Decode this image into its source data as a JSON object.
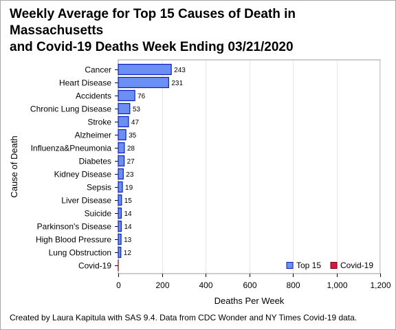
{
  "title_lines": [
    "Weekly Average for Top 15 Causes of Death in",
    "Massachusetts",
    "and Covid-19 Deaths Week Ending 03/21/2020"
  ],
  "footnote": "Created by Laura Kapitula with SAS 9.4. Data from CDC Wonder and NY Times Covid-19 data.",
  "colors": {
    "top15_fill": "#6b8ff2",
    "top15_stroke": "#0a1fb8",
    "covid_fill": "#d41a3c",
    "covid_stroke": "#7a0010",
    "grid": "#e6e6e6",
    "axis": "#9a9a9a"
  },
  "chart_data": {
    "type": "bar",
    "orientation": "horizontal",
    "xlabel": "Deaths Per Week",
    "ylabel": "Cause of Death",
    "xlim": [
      0,
      1200
    ],
    "xticks": [
      0,
      200,
      400,
      600,
      800,
      1000,
      1200
    ],
    "xtick_labels": [
      "0",
      "200",
      "400",
      "600",
      "800",
      "1,000",
      "1,200"
    ],
    "grid": "vertical",
    "legend_position": "bottom-right",
    "categories": [
      "Cancer",
      "Heart Disease",
      "Accidents",
      "Chronic Lung Disease",
      "Stroke",
      "Alzheimer",
      "Influenza&Pneumonia",
      "Diabetes",
      "Kidney Disease",
      "Sepsis",
      "Liver Disease",
      "Suicide",
      "Parkinson's Disease",
      "High Blood Pressure",
      "Lung Obstruction",
      "Covid-19"
    ],
    "series": [
      {
        "name": "Top 15",
        "color": "#6b8ff2",
        "values": [
          243,
          231,
          76,
          53,
          47,
          35,
          28,
          27,
          23,
          19,
          15,
          14,
          14,
          13,
          12,
          null
        ]
      },
      {
        "name": "Covid-19",
        "color": "#d41a3c",
        "values": [
          null,
          null,
          null,
          null,
          null,
          null,
          null,
          null,
          null,
          null,
          null,
          null,
          null,
          null,
          null,
          0
        ]
      }
    ],
    "data_labels": [
      "243",
      "231",
      "76",
      "53",
      "47",
      "35",
      "28",
      "27",
      "23",
      "19",
      "15",
      "14",
      "14",
      "13",
      "12",
      ""
    ]
  }
}
